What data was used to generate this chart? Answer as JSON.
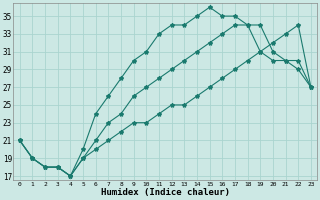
{
  "xlabel": "Humidex (Indice chaleur)",
  "bg_color": "#cce8e4",
  "grid_color": "#aad4cf",
  "line_color": "#1a7a6e",
  "xlim": [
    -0.5,
    23.5
  ],
  "ylim": [
    16.5,
    36.5
  ],
  "yticks": [
    17,
    19,
    21,
    23,
    25,
    27,
    29,
    31,
    33,
    35
  ],
  "xticks": [
    0,
    1,
    2,
    3,
    4,
    5,
    6,
    7,
    8,
    9,
    10,
    11,
    12,
    13,
    14,
    15,
    16,
    17,
    18,
    19,
    20,
    21,
    22,
    23
  ],
  "line1_x": [
    0,
    1,
    2,
    3,
    4,
    5,
    6,
    7,
    8,
    9,
    10,
    11,
    12,
    13,
    14,
    15,
    16,
    17,
    18,
    19,
    20,
    21,
    22,
    23
  ],
  "line1_y": [
    21,
    19,
    18,
    18,
    17,
    20,
    24,
    26,
    28,
    30,
    31,
    33,
    34,
    34,
    35,
    36,
    35,
    35,
    34,
    34,
    31,
    30,
    30,
    27
  ],
  "line2_x": [
    0,
    1,
    2,
    3,
    4,
    5,
    6,
    7,
    8,
    9,
    10,
    11,
    12,
    13,
    14,
    15,
    16,
    17,
    18,
    19,
    20,
    21,
    22,
    23
  ],
  "line2_y": [
    21,
    19,
    18,
    18,
    17,
    19,
    21,
    23,
    24,
    26,
    27,
    28,
    29,
    30,
    31,
    32,
    33,
    34,
    34,
    31,
    30,
    30,
    29,
    27
  ],
  "line3_x": [
    0,
    1,
    2,
    3,
    4,
    5,
    6,
    7,
    8,
    9,
    10,
    11,
    12,
    13,
    14,
    15,
    16,
    17,
    18,
    19,
    20,
    21,
    22,
    23
  ],
  "line3_y": [
    21,
    19,
    18,
    18,
    17,
    19,
    20,
    21,
    22,
    23,
    23,
    24,
    25,
    25,
    26,
    27,
    28,
    29,
    30,
    31,
    32,
    33,
    34,
    27
  ]
}
